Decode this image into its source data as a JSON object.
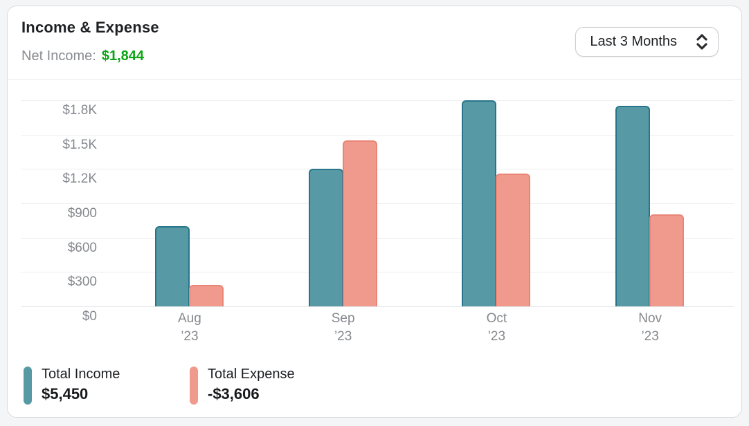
{
  "card": {
    "title": "Income & Expense",
    "net_income": {
      "label": "Net Income:",
      "value": "$1,844",
      "color": "#0ca513"
    },
    "period_selector": {
      "value": "Last 3 Months",
      "icon": "chevron-up-down-icon"
    }
  },
  "chart_data": {
    "type": "bar",
    "title": "Income & Expense",
    "categories": [
      "Aug ’23",
      "Sep ’23",
      "Oct ’23",
      "Nov ’23"
    ],
    "series": [
      {
        "name": "Total Income",
        "total": 5450,
        "total_label": "$5,450",
        "values": [
          700,
          1200,
          1800,
          1750
        ],
        "fill_color": "#579aa5",
        "border_color": "#27758a"
      },
      {
        "name": "Total Expense",
        "total": -3606,
        "total_label": "-$3,606",
        "values": [
          190,
          1450,
          1160,
          806
        ],
        "fill_color": "#f09a8d",
        "border_color": "#e98577"
      }
    ],
    "xlabel": "",
    "ylabel": "",
    "ylim": [
      0,
      1800
    ],
    "ytick_step": 300,
    "ytick_labels": [
      "$0",
      "$300",
      "$600",
      "$900",
      "$1.2K",
      "$1.5K",
      "$1.8K"
    ],
    "grid": true,
    "legend_position": "bottom"
  }
}
